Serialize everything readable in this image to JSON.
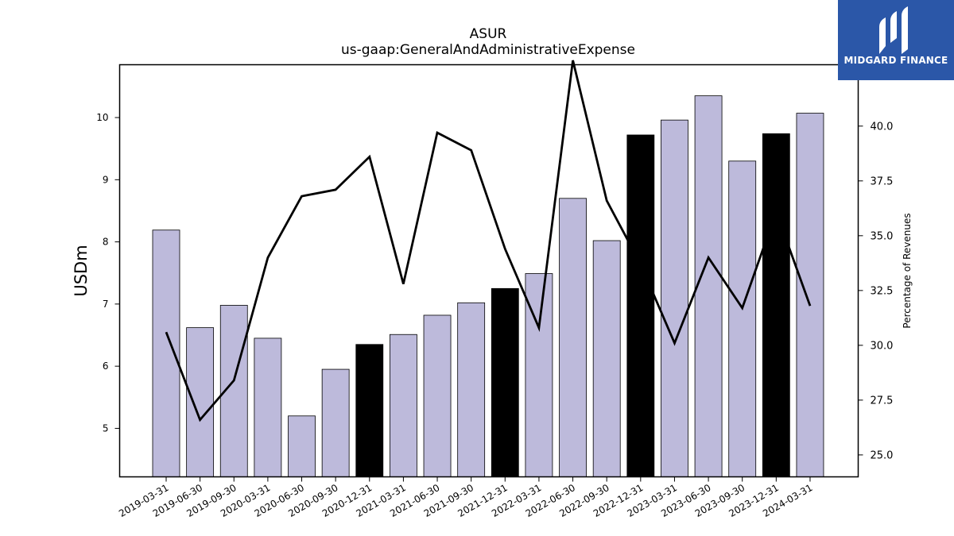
{
  "logo": {
    "name": "MIDGARD FINANCE",
    "icon": "midgard-logo-icon",
    "color": "#2b57a8"
  },
  "chart_data": {
    "type": "bar",
    "title": "ASUR",
    "subtitle": "us-gaap:GeneralAndAdministrativeExpense",
    "ylabel": "USDm",
    "ylabel_right": "Percentage of Revenues",
    "ylim": [
      4.22,
      10.85
    ],
    "ylim_right": [
      24.0,
      42.8
    ],
    "yticks": [
      5,
      6,
      7,
      8,
      9,
      10
    ],
    "yticks_right": [
      "25.0",
      "27.5",
      "30.0",
      "32.5",
      "35.0",
      "37.5",
      "40.0"
    ],
    "categories": [
      "2019-03-31",
      "2019-06-30",
      "2019-09-30",
      "2020-03-31",
      "2020-06-30",
      "2020-09-30",
      "2020-12-31",
      "2021-03-31",
      "2021-06-30",
      "2021-09-30",
      "2021-12-31",
      "2022-03-31",
      "2022-06-30",
      "2022-09-30",
      "2022-12-31",
      "2023-03-31",
      "2023-06-30",
      "2023-09-30",
      "2023-12-31",
      "2024-03-31"
    ],
    "series": [
      {
        "axis": "left",
        "type": "bar",
        "values": [
          8.19,
          6.62,
          6.98,
          6.45,
          5.2,
          5.95,
          6.35,
          6.51,
          6.82,
          7.02,
          7.25,
          7.49,
          8.7,
          8.02,
          9.72,
          9.96,
          10.35,
          9.3,
          9.74,
          10.07
        ],
        "highlight": [
          false,
          false,
          false,
          false,
          false,
          false,
          true,
          false,
          false,
          false,
          true,
          false,
          false,
          false,
          true,
          false,
          false,
          false,
          true,
          false
        ]
      },
      {
        "axis": "right",
        "type": "line",
        "values": [
          30.6,
          26.6,
          28.4,
          34.0,
          36.8,
          37.1,
          38.6,
          32.8,
          39.7,
          38.9,
          34.4,
          30.8,
          43.0,
          36.6,
          33.7,
          30.1,
          34.0,
          31.7,
          36.1,
          31.8
        ]
      }
    ],
    "colors": {
      "bar": "#bdbadb",
      "bar_highlight": "#000000",
      "line": "#000000"
    },
    "grid": false,
    "legend": "none"
  }
}
